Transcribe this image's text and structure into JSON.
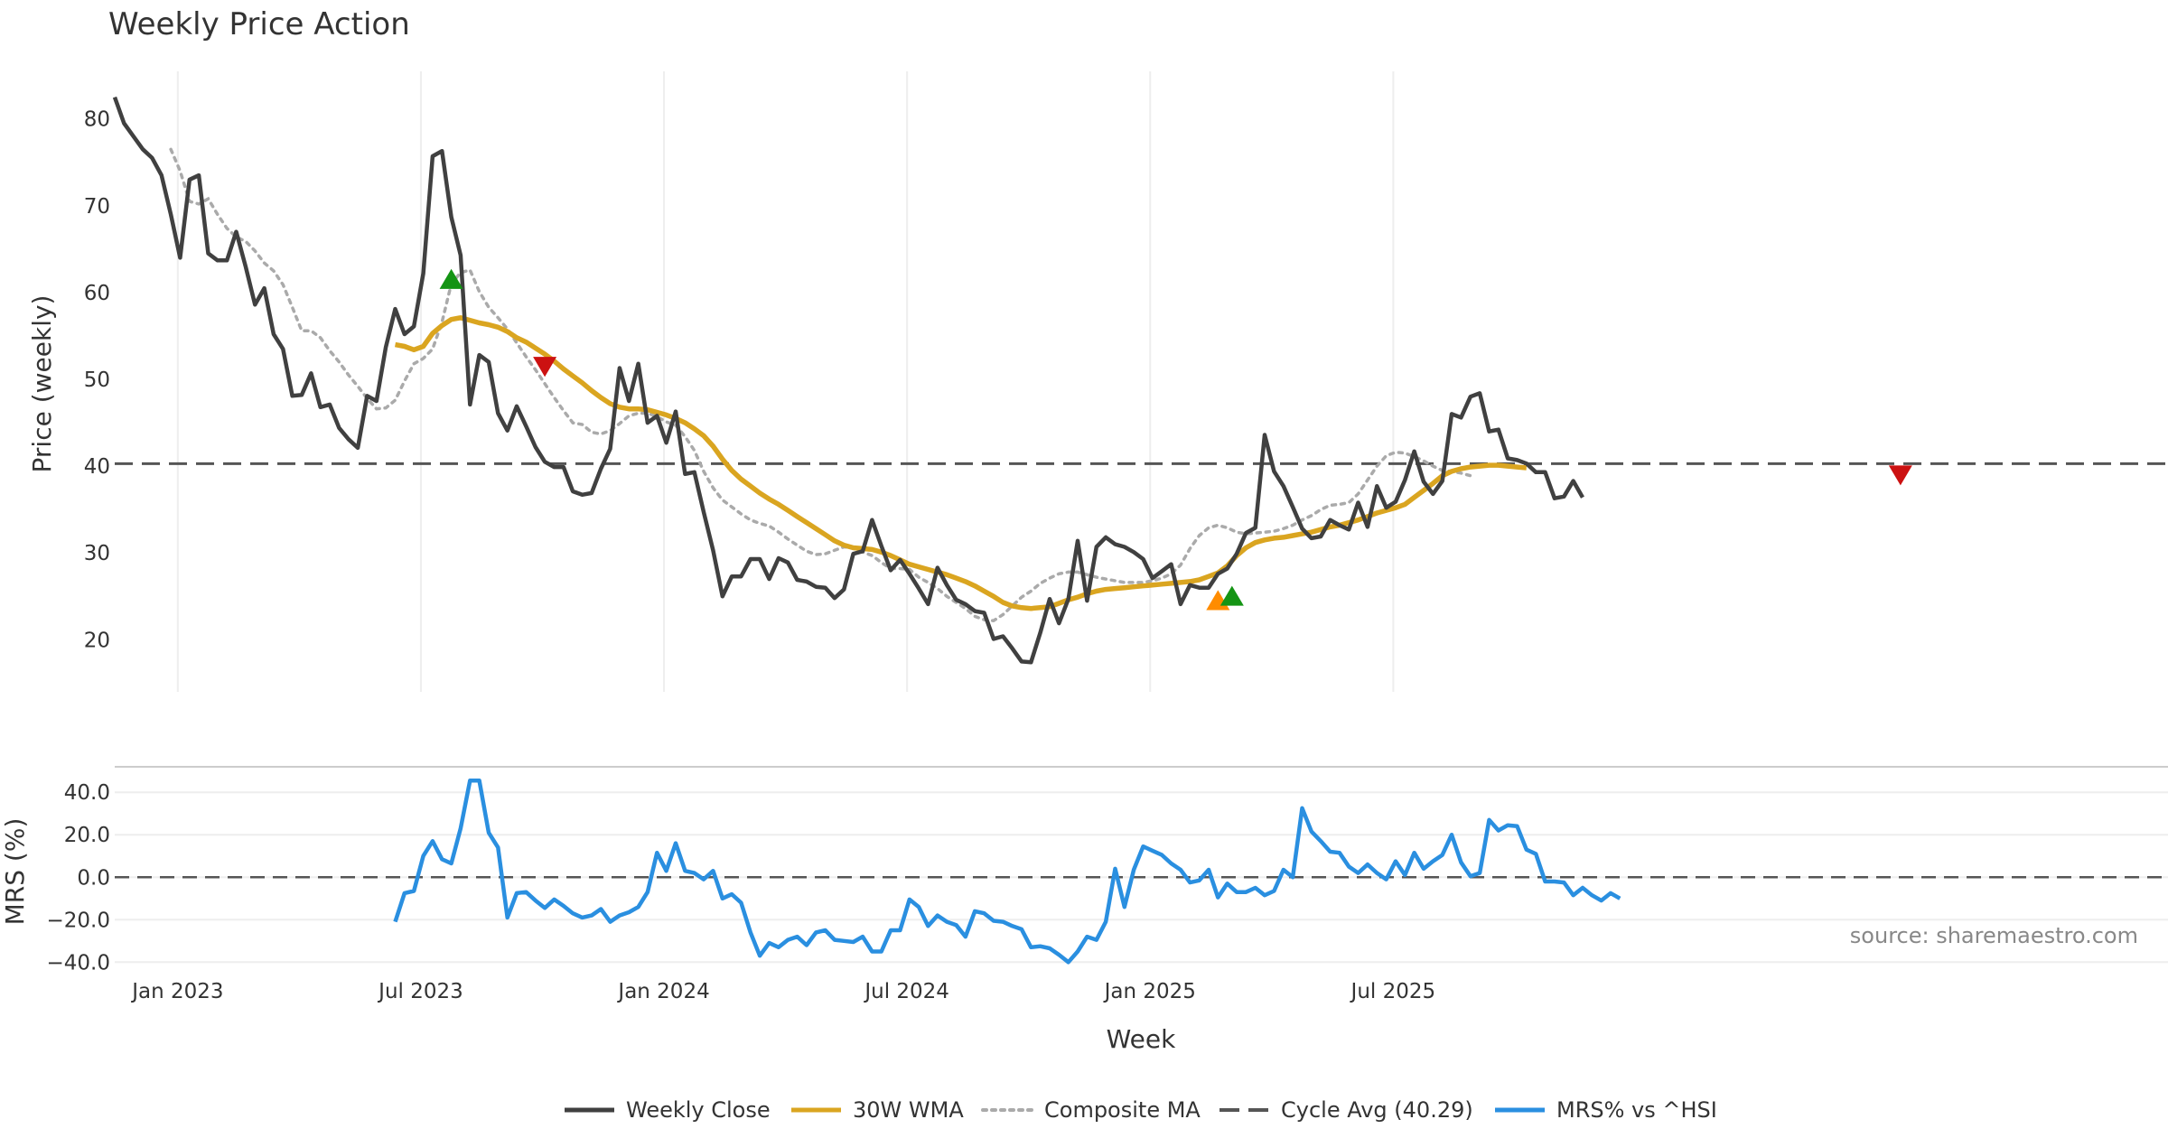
{
  "chart_data": {
    "type": "line",
    "title": "Weekly Price Action",
    "xlabel": "Week",
    "x_ticks": [
      "Jan 2023",
      "Jul 2023",
      "Jan 2024",
      "Jul 2024",
      "Jan 2025",
      "Jul 2025"
    ],
    "source": "source: sharemaestro.com",
    "legend_position": "bottom-center",
    "grid": true,
    "colors": {
      "weekly_close": "#404040",
      "wma": "#DAA520",
      "composite": "#AAAAAA",
      "cycle": "#555555",
      "mrs": "#2A8FE0",
      "buy": "#149414",
      "sell": "#CC1111",
      "orange": "#FF8C00"
    },
    "price_panel": {
      "ylabel": "Price (weekly)",
      "yticks": [
        20,
        30,
        40,
        50,
        60,
        70,
        80
      ],
      "ylim": [
        14,
        86
      ],
      "cycle_avg": 40.29,
      "series": [
        {
          "name": "Weekly Close",
          "start_week": 0,
          "values": [
            82.5,
            79.5,
            78,
            76.5,
            75.5,
            73.5,
            69,
            64,
            73,
            73.5,
            64.5,
            63.7,
            63.7,
            67,
            63,
            58.6,
            60.5,
            55.2,
            53.5,
            48.1,
            48.2,
            50.7,
            46.8,
            47.1,
            44.4,
            43.1,
            42.1,
            48.1,
            47.5,
            53.7,
            58.1,
            55.2,
            56.1,
            62.2,
            75.7,
            76.3,
            68.7,
            64.3,
            47.1,
            52.8,
            52,
            46.1,
            44.1,
            46.9,
            44.6,
            42.2,
            40.5,
            39.9,
            39.9,
            37.1,
            36.7,
            36.9,
            39.7,
            42,
            51.3,
            47.5,
            51.8,
            45,
            45.8,
            42.7,
            46.3,
            39.1,
            39.3,
            34.7,
            30.3,
            25,
            27.3,
            27.3,
            29.3,
            29.3,
            27,
            29.4,
            28.9,
            26.9,
            26.7,
            26.1,
            26,
            24.8,
            25.8,
            29.9,
            30.2,
            33.8,
            30.8,
            28,
            29.2,
            27.6,
            25.9,
            24.1,
            28.3,
            26.3,
            24.6,
            24.1,
            23.3,
            23.1,
            20.1,
            20.4,
            19,
            17.5,
            17.4,
            20.8,
            24.7,
            21.9,
            24.7,
            31.4,
            24.5,
            30.7,
            31.8,
            31,
            30.7,
            30.1,
            29.3,
            27.1,
            27.9,
            28.7,
            24.1,
            26.3,
            26,
            26,
            27.6,
            28.2,
            29.9,
            32.3,
            32.9,
            43.6,
            39.4,
            37.7,
            35.3,
            32.8,
            31.7,
            31.9,
            33.8,
            33.2,
            32.7,
            35.8,
            33,
            37.7,
            35.2,
            35.9,
            38.4,
            41.7,
            38.2,
            36.8,
            38.3,
            46,
            45.6,
            48,
            48.4,
            44,
            44.2,
            40.9,
            40.7,
            40.3,
            39.3,
            39.3,
            36.3,
            36.5,
            38.3,
            36.4
          ]
        },
        {
          "name": "30W WMA",
          "start_week": 30,
          "values": [
            54,
            53.8,
            53.4,
            53.8,
            55.3,
            56.2,
            56.9,
            57.1,
            56.8,
            56.5,
            56.3,
            56,
            55.5,
            54.8,
            54.3,
            53.6,
            52.9,
            52.1,
            51.2,
            50.4,
            49.6,
            48.7,
            47.9,
            47.2,
            46.8,
            46.6,
            46.6,
            46.5,
            46.2,
            45.9,
            45.5,
            45,
            44.3,
            43.5,
            42.3,
            40.8,
            39.5,
            38.5,
            37.7,
            36.9,
            36.2,
            35.6,
            34.9,
            34.2,
            33.5,
            32.8,
            32.1,
            31.4,
            30.9,
            30.6,
            30.5,
            30.4,
            30.1,
            29.7,
            29.2,
            28.7,
            28.4,
            28.1,
            27.8,
            27.5,
            27.1,
            26.7,
            26.2,
            25.6,
            25,
            24.3,
            23.9,
            23.7,
            23.6,
            23.7,
            23.8,
            24.2,
            24.6,
            24.9,
            25.3,
            25.6,
            25.8,
            25.9,
            26,
            26.1,
            26.2,
            26.3,
            26.4,
            26.5,
            26.6,
            26.7,
            26.9,
            27.3,
            27.7,
            28.5,
            29.7,
            30.6,
            31.2,
            31.5,
            31.7,
            31.8,
            32,
            32.2,
            32.4,
            32.7,
            33,
            33.2,
            33.5,
            33.8,
            34.2,
            34.6,
            34.9,
            35.2,
            35.6,
            36.4,
            37.2,
            38,
            38.9,
            39.4,
            39.7,
            39.9,
            40,
            40.1,
            40.1,
            40,
            39.9,
            39.8
          ]
        },
        {
          "name": "Composite MA",
          "start_week": 6,
          "values": [
            76.5,
            74,
            70.5,
            70.2,
            70.8,
            69,
            67.4,
            66.4,
            65.9,
            64.8,
            63.4,
            62.5,
            60.9,
            58.3,
            55.6,
            55.6,
            54.8,
            53.3,
            52,
            50.5,
            49.2,
            47.8,
            46.6,
            46.7,
            47.6,
            49.8,
            51.8,
            52.4,
            53.5,
            56.6,
            61,
            62.3,
            62.6,
            60.1,
            58.3,
            57.1,
            55.8,
            54.2,
            52.6,
            51.1,
            49.5,
            47.9,
            46.4,
            45,
            44.8,
            43.9,
            43.7,
            44.1,
            44.9,
            45.8,
            46.1,
            46.1,
            45.7,
            45.1,
            44.7,
            43.4,
            41.8,
            39.4,
            37.5,
            36.1,
            35.3,
            34.5,
            33.8,
            33.4,
            33.1,
            32.4,
            31.6,
            30.9,
            30.2,
            29.8,
            29.9,
            30.3,
            30.7,
            30.6,
            30.1,
            29.7,
            28.9,
            28.2,
            28.2,
            28.1,
            27.2,
            26.6,
            25.9,
            25,
            24.3,
            23.6,
            22.7,
            22.3,
            22.2,
            22.9,
            23.9,
            24.9,
            25.6,
            26.5,
            27.1,
            27.6,
            27.8,
            27.8,
            27.5,
            27.2,
            27,
            26.8,
            26.6,
            26.6,
            26.6,
            26.8,
            27.1,
            27.6,
            28.6,
            30.5,
            32,
            32.9,
            33.2,
            32.9,
            32.4,
            32.2,
            32.3,
            32.4,
            32.5,
            32.8,
            33.2,
            33.8,
            34.3,
            35,
            35.5,
            35.6,
            35.8,
            36.8,
            38.4,
            40,
            41.2,
            41.6,
            41.5,
            41.1,
            40.6,
            40,
            39.5,
            39.4,
            39.2,
            38.9
          ]
        }
      ],
      "markers": [
        {
          "week": 36,
          "value": 61.5,
          "shape": "up",
          "color": "buy"
        },
        {
          "week": 46,
          "value": 51.5,
          "shape": "down",
          "color": "sell"
        },
        {
          "week": 118,
          "value": 24.5,
          "shape": "up",
          "color": "orange"
        },
        {
          "week": 119.5,
          "value": 25,
          "shape": "up",
          "color": "buy"
        },
        {
          "week": 191,
          "value": 39,
          "shape": "down",
          "color": "sell"
        }
      ]
    },
    "mrs_panel": {
      "ylabel": "MRS (%)",
      "yticks": [
        "40.0",
        "20.0",
        "0.0",
        "−20.0",
        "−40.0"
      ],
      "ylim": [
        -42,
        52
      ],
      "series": [
        {
          "name": "MRS% vs ^HSI",
          "start_week": 30,
          "values": [
            -21,
            -7.5,
            -6.5,
            10,
            17,
            8.5,
            6.5,
            23,
            45.5,
            45.5,
            21,
            14,
            -19,
            -7.5,
            -7,
            -11,
            -14.5,
            -10.5,
            -13.5,
            -17,
            -19,
            -18,
            -15,
            -21,
            -18,
            -16.5,
            -14,
            -7,
            11.5,
            3,
            16,
            3,
            2,
            -1,
            3,
            -10,
            -8,
            -12,
            -26,
            -37,
            -31,
            -33,
            -29.5,
            -28,
            -32,
            -26,
            -25,
            -29.5,
            -30,
            -30.5,
            -28,
            -35,
            -35,
            -25,
            -25,
            -10.5,
            -14,
            -23,
            -18,
            -21,
            -22.5,
            -28,
            -16,
            -17,
            -20.5,
            -21,
            -23,
            -24.5,
            -33,
            -32.5,
            -33.5,
            -36.5,
            -40,
            -35,
            -28,
            -29.5,
            -21,
            4,
            -14,
            3.5,
            14.5,
            12.5,
            10.5,
            6.5,
            3.5,
            -2.5,
            -1.5,
            3.5,
            -9.5,
            -3,
            -7,
            -7,
            -5,
            -8.5,
            -6.5,
            3.5,
            0,
            32.5,
            21.5,
            17,
            12,
            11.5,
            5,
            2,
            6,
            2,
            -1,
            7.5,
            1,
            11.5,
            4,
            7.5,
            10.5,
            20,
            7,
            0.5,
            2,
            27,
            22,
            24.5,
            24,
            13,
            11,
            -2,
            -2,
            -2.5,
            -8.5,
            -5,
            -8.5,
            -11,
            -7.5,
            -10
          ]
        }
      ]
    },
    "legend": [
      {
        "label": "Weekly Close",
        "style": "solid",
        "color": "weekly_close"
      },
      {
        "label": "30W WMA",
        "style": "solid",
        "color": "wma"
      },
      {
        "label": "Composite MA",
        "style": "dotted",
        "color": "composite"
      },
      {
        "label": "Cycle Avg (40.29)",
        "style": "dashed",
        "color": "cycle"
      },
      {
        "label": "MRS% vs ^HSI",
        "style": "solid",
        "color": "mrs"
      }
    ]
  }
}
